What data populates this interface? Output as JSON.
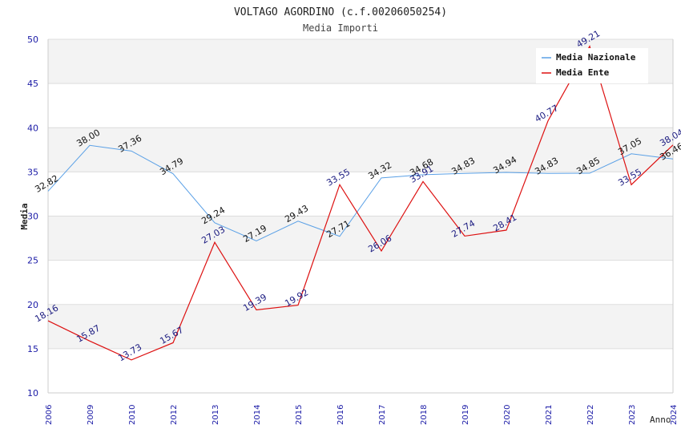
{
  "chart_data": {
    "type": "line",
    "title": "VOLTAGO AGORDINO (c.f.00206050254)",
    "subtitle": "Media Importi",
    "xlabel": "Anno",
    "ylabel": "Media",
    "ylim": [
      10,
      50
    ],
    "yticks": [
      10,
      15,
      20,
      25,
      30,
      35,
      40,
      45,
      50
    ],
    "categories": [
      "2006",
      "2009",
      "2010",
      "2012",
      "2013",
      "2014",
      "2015",
      "2016",
      "2017",
      "2018",
      "2019",
      "2020",
      "2021",
      "2022",
      "2023",
      "2024"
    ],
    "series": [
      {
        "name": "Media Nazionale",
        "color": "#5aa0e6",
        "values": [
          32.82,
          38.0,
          37.36,
          34.79,
          29.24,
          27.19,
          29.43,
          27.71,
          34.32,
          34.68,
          34.83,
          34.94,
          34.83,
          34.85,
          37.05,
          36.46
        ],
        "labels": [
          "32.82",
          "38.00",
          "37.36",
          "34.79",
          "29.24",
          "27.19",
          "29.43",
          "27.71",
          "34.32",
          "34.68",
          "34.83",
          "34.94",
          "34.83",
          "34.85",
          "37.05",
          "36.46"
        ]
      },
      {
        "name": "Media Ente",
        "color": "#dd1111",
        "values": [
          18.16,
          15.87,
          13.73,
          15.67,
          27.03,
          19.39,
          19.92,
          33.55,
          26.06,
          33.91,
          27.74,
          28.41,
          40.77,
          49.21,
          33.55,
          38.04
        ],
        "labels": [
          "18.16",
          "15.87",
          "13.73",
          "15.67",
          "27.03",
          "19.39",
          "19.92",
          "33.55",
          "26.06",
          "33.91",
          "27.74",
          "28.41",
          "40.77",
          "49.21",
          "33.55",
          "38.04"
        ]
      }
    ],
    "legend": "top-right",
    "grid": true
  }
}
